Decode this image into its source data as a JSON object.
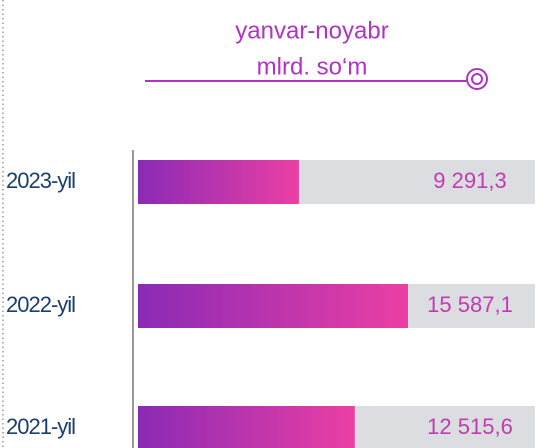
{
  "chart_data": {
    "type": "bar",
    "orientation": "horizontal",
    "title": "yanvar-noyabr",
    "subtitle": "mlrd. so‘m",
    "categories": [
      "2023-yil",
      "2022-yil",
      "2021-yil"
    ],
    "values": [
      9291.3,
      15587.1,
      12515.6
    ],
    "value_labels": [
      "9 291,3",
      "15 587,1",
      "12 515,6"
    ],
    "color": "#c03cb0"
  }
}
